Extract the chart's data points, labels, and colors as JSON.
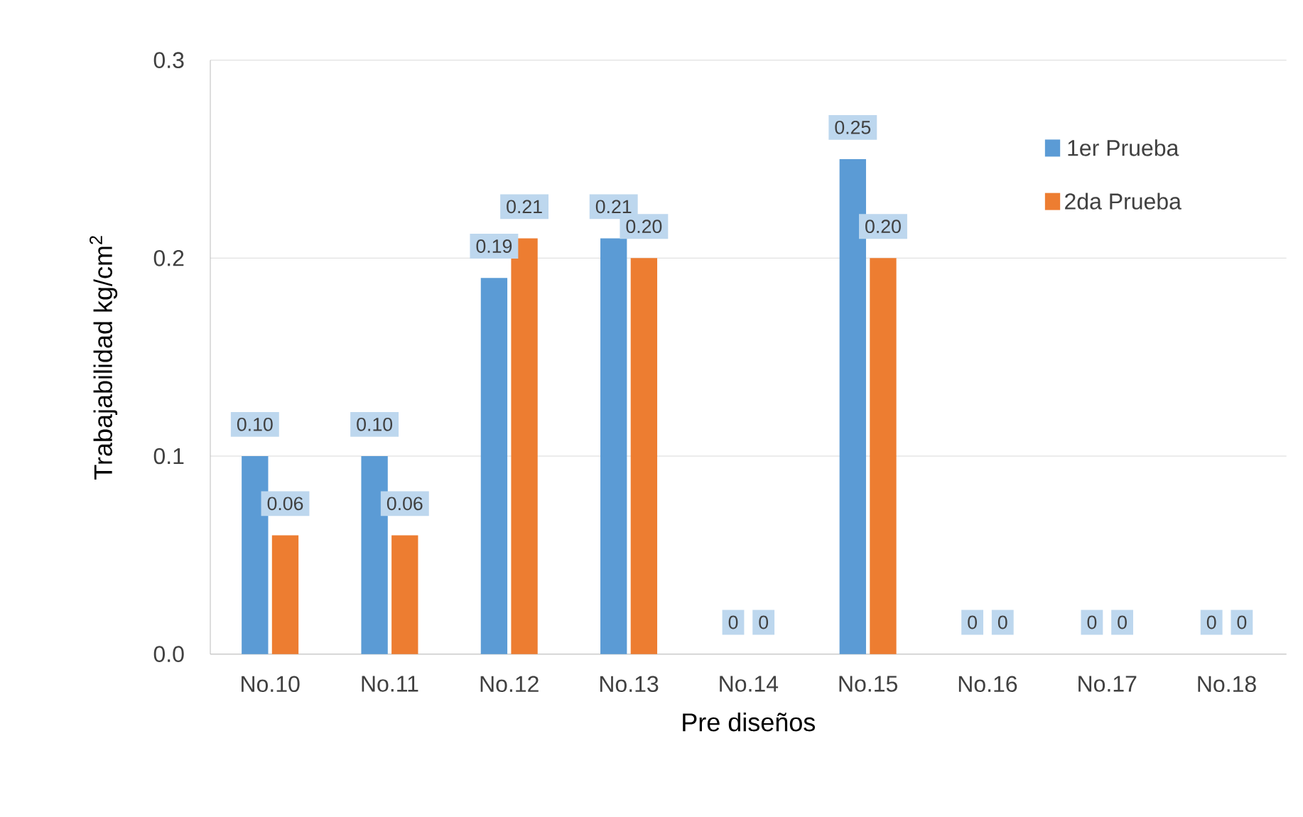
{
  "chart_data": {
    "type": "bar",
    "categories": [
      "No.10",
      "No.11",
      "No.12",
      "No.13",
      "No.14",
      "No.15",
      "No.16",
      "No.17",
      "No.18"
    ],
    "xlabel": "Pre diseños",
    "ylabel": "Trabajabilidad      kg/cm$^{2}$",
    "series": [
      {
        "name": "1er Prueba",
        "color": "#5b9bd5",
        "values": [
          0.1,
          0.1,
          0.19,
          0.21,
          0,
          0.25,
          0,
          0,
          0
        ],
        "value_labels": [
          "0.10",
          "0.10",
          "0.19",
          "0.21",
          "0",
          "0.25",
          "0",
          "0",
          "0"
        ]
      },
      {
        "name": "2da Prueba",
        "color": "#ed7d31",
        "values": [
          0.06,
          0.06,
          0.21,
          0.2,
          0,
          0.2,
          0,
          0,
          0
        ],
        "value_labels": [
          "0.06",
          "0.06",
          "0.21",
          "0.20",
          "0",
          "0.20",
          "0",
          "0",
          "0"
        ]
      }
    ],
    "ylim": [
      0,
      0.3
    ],
    "yticks": [
      {
        "value": 0,
        "label": "0.0"
      },
      0.1,
      0.2,
      0.3
    ],
    "grid": "y",
    "legend": "top right"
  }
}
